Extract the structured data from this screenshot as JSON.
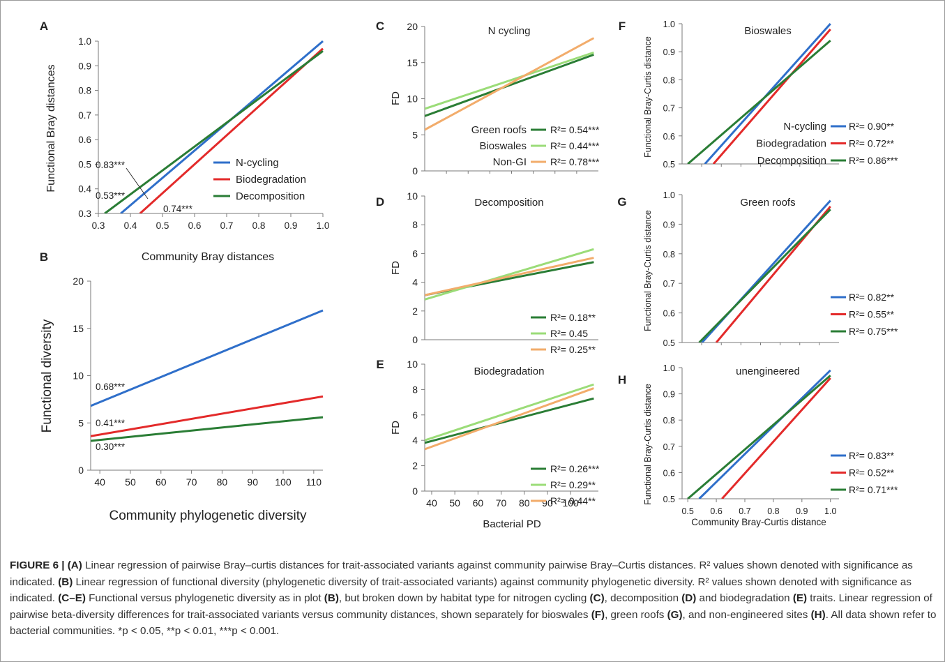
{
  "figure": {
    "caption": [
      {
        "bold": "FIGURE 6 | (A)",
        "text": " Linear regression of pairwise Bray–curtis distances for trait-associated variants against community pairwise Bray–Curtis distances. R² values shown denoted with significance as indicated. "
      },
      {
        "bold": "(B)",
        "text": " Linear regression of functional diversity (phylogenetic diversity of trait-associated variants) against community phylogenetic diversity. R² values shown denoted with significance as indicated. "
      },
      {
        "bold": "(C–E)",
        "text": " Functional versus phylogenetic diversity as in plot "
      },
      {
        "bold": "(B)",
        "text": ", but broken down by habitat type for nitrogen cycling "
      },
      {
        "bold": "(C)",
        "text": ", decomposition "
      },
      {
        "bold": "(D)",
        "text": " and biodegradation "
      },
      {
        "bold": "(E)",
        "text": " traits. Linear regression of pairwise beta-diversity differences for trait-associated variants versus community distances, shown separately for bioswales "
      },
      {
        "bold": "(F)",
        "text": ", green roofs "
      },
      {
        "bold": "(G)",
        "text": ", and non-engineered sites "
      },
      {
        "bold": "(H)",
        "text": ". All data shown refer to bacterial communities. *p < 0.05, **p < 0.01, ***p < 0.001."
      }
    ]
  },
  "colors": {
    "blue": "#2f6fca",
    "red": "#e32a2a",
    "green": "#2a7d35",
    "lightgreen": "#9bdc78",
    "orange": "#f2ac6b",
    "axis": "#7a7a7a",
    "text": "#222222"
  },
  "chart_data": [
    {
      "id": "A",
      "type": "line",
      "panel_label": "A",
      "title": "",
      "xlabel": "Community Bray distances",
      "ylabel": "Functional Bray distances",
      "xlim": [
        0.3,
        1.0
      ],
      "ylim": [
        0.3,
        1.0
      ],
      "xticks": [
        "0.3",
        "0.4",
        "0.5",
        "0.6",
        "0.7",
        "0.8",
        "0.9",
        "1.0"
      ],
      "yticks": [
        "0.3",
        "0.4",
        "0.5",
        "0.6",
        "0.7",
        "0.8",
        "0.9",
        "1.0"
      ],
      "legend_position": "center-right",
      "series": [
        {
          "name": "N-cycling",
          "color": "blue",
          "x": [
            0.37,
            1.0
          ],
          "y": [
            0.3,
            1.0
          ],
          "r2_label": "0.53***"
        },
        {
          "name": "Biodegradation",
          "color": "red",
          "x": [
            0.43,
            1.0
          ],
          "y": [
            0.3,
            0.97
          ],
          "r2_label": "0.74***"
        },
        {
          "name": "Decomposition",
          "color": "green",
          "x": [
            0.32,
            1.0
          ],
          "y": [
            0.3,
            0.96
          ],
          "r2_label": "0.83***"
        }
      ]
    },
    {
      "id": "B",
      "type": "line",
      "panel_label": "B",
      "title": "",
      "xlabel": "Community phylogenetic diversity",
      "ylabel": "Functional diversity",
      "xlim": [
        37,
        113
      ],
      "ylim": [
        0,
        20
      ],
      "xticks": [
        "40",
        "50",
        "60",
        "70",
        "80",
        "90",
        "100",
        "110"
      ],
      "yticks": [
        "0",
        "5",
        "10",
        "15",
        "20"
      ],
      "series": [
        {
          "color": "blue",
          "x": [
            37,
            113
          ],
          "y": [
            6.8,
            16.9
          ],
          "r2_label": "0.68***"
        },
        {
          "color": "red",
          "x": [
            37,
            113
          ],
          "y": [
            3.6,
            7.8
          ],
          "r2_label": "0.41***"
        },
        {
          "color": "green",
          "x": [
            37,
            113
          ],
          "y": [
            3.1,
            5.6
          ],
          "r2_label": "0.30***"
        }
      ]
    },
    {
      "id": "C",
      "type": "line",
      "panel_label": "C",
      "title": "N cycling",
      "xlabel": "",
      "ylabel": "FD",
      "xlim": [
        37,
        112
      ],
      "ylim": [
        0,
        20
      ],
      "yticks": [
        "0",
        "5",
        "10",
        "15",
        "20"
      ],
      "legend_position": "bottom-right",
      "series": [
        {
          "name": "Green roofs",
          "color": "green",
          "x": [
            37,
            110
          ],
          "y": [
            7.6,
            16.1
          ],
          "r2_label": "R²= 0.54***"
        },
        {
          "name": "Bioswales",
          "color": "lightgreen",
          "x": [
            37,
            110
          ],
          "y": [
            8.6,
            16.4
          ],
          "r2_label": "R²= 0.44***"
        },
        {
          "name": "Non-GI",
          "color": "orange",
          "x": [
            37,
            110
          ],
          "y": [
            5.7,
            18.4
          ],
          "r2_label": "R²= 0.78***"
        }
      ]
    },
    {
      "id": "D",
      "type": "line",
      "panel_label": "D",
      "title": "Decomposition",
      "xlabel": "",
      "ylabel": "FD",
      "xlim": [
        37,
        112
      ],
      "ylim": [
        0,
        10
      ],
      "yticks": [
        "0",
        "2",
        "4",
        "6",
        "8",
        "10"
      ],
      "legend_position": "bottom-right",
      "series": [
        {
          "color": "green",
          "x": [
            37,
            110
          ],
          "y": [
            3.1,
            5.4
          ],
          "r2_label": "R²= 0.18**"
        },
        {
          "color": "lightgreen",
          "x": [
            37,
            110
          ],
          "y": [
            2.8,
            6.3
          ],
          "r2_label": "R²= 0.45"
        },
        {
          "color": "orange",
          "x": [
            37,
            110
          ],
          "y": [
            3.1,
            5.7
          ],
          "r2_label": "R²= 0.25**"
        }
      ]
    },
    {
      "id": "E",
      "type": "line",
      "panel_label": "E",
      "title": "Biodegradation",
      "xlabel": "Bacterial PD",
      "ylabel": "FD",
      "xlim": [
        37,
        112
      ],
      "ylim": [
        0,
        10
      ],
      "xticks": [
        "40",
        "50",
        "60",
        "70",
        "80",
        "90",
        "100"
      ],
      "yticks": [
        "0",
        "2",
        "4",
        "6",
        "8",
        "10"
      ],
      "legend_position": "bottom-right",
      "series": [
        {
          "color": "green",
          "x": [
            37,
            110
          ],
          "y": [
            3.8,
            7.3
          ],
          "r2_label": "R²= 0.26***"
        },
        {
          "color": "lightgreen",
          "x": [
            37,
            110
          ],
          "y": [
            4.0,
            8.4
          ],
          "r2_label": "R²= 0.29**"
        },
        {
          "color": "orange",
          "x": [
            37,
            110
          ],
          "y": [
            3.3,
            8.1
          ],
          "r2_label": "R²= 0.44**"
        }
      ]
    },
    {
      "id": "F",
      "type": "line",
      "panel_label": "F",
      "title": "Bioswales",
      "xlabel": "",
      "ylabel": "Functional Bray-Curtis distance",
      "xlim": [
        0.48,
        1.03
      ],
      "ylim": [
        0.5,
        1.0
      ],
      "yticks": [
        "0.5",
        "0.6",
        "0.7",
        "0.8",
        "0.9",
        "1.0"
      ],
      "legend_position": "center-right",
      "series": [
        {
          "name": "N-cycling",
          "color": "blue",
          "x": [
            0.56,
            1.0
          ],
          "y": [
            0.5,
            1.0
          ],
          "r2_label": "R²= 0.90**"
        },
        {
          "name": "Biodegradation",
          "color": "red",
          "x": [
            0.59,
            1.0
          ],
          "y": [
            0.5,
            0.98
          ],
          "r2_label": "R²= 0.72**"
        },
        {
          "name": "Decomposition",
          "color": "green",
          "x": [
            0.5,
            1.0
          ],
          "y": [
            0.5,
            0.94
          ],
          "r2_label": "R²= 0.86***"
        }
      ]
    },
    {
      "id": "G",
      "type": "line",
      "panel_label": "G",
      "title": "Green roofs",
      "xlabel": "",
      "ylabel": "Functional Bray-Curtis distance",
      "xlim": [
        0.48,
        1.03
      ],
      "ylim": [
        0.5,
        1.0
      ],
      "yticks": [
        "0.5",
        "0.6",
        "0.7",
        "0.8",
        "0.9",
        "1.0"
      ],
      "legend_position": "bottom-right",
      "series": [
        {
          "color": "blue",
          "x": [
            0.55,
            1.0
          ],
          "y": [
            0.5,
            0.98
          ],
          "r2_label": "R²= 0.82**"
        },
        {
          "color": "red",
          "x": [
            0.6,
            1.0
          ],
          "y": [
            0.5,
            0.96
          ],
          "r2_label": "R²= 0.55**"
        },
        {
          "color": "green",
          "x": [
            0.54,
            1.0
          ],
          "y": [
            0.5,
            0.95
          ],
          "r2_label": "R²= 0.75***"
        }
      ]
    },
    {
      "id": "H",
      "type": "line",
      "panel_label": "H",
      "title": "unengineered",
      "xlabel": "Community Bray-Curtis distance",
      "ylabel": "Functional Bray-Curtis distance",
      "xlim": [
        0.48,
        1.03
      ],
      "ylim": [
        0.5,
        1.0
      ],
      "xticks": [
        "0.5",
        "0.6",
        "0.7",
        "0.8",
        "0.9",
        "1.0"
      ],
      "yticks": [
        "0.5",
        "0.6",
        "0.7",
        "0.8",
        "0.9",
        "1.0"
      ],
      "legend_position": "bottom-right",
      "series": [
        {
          "color": "blue",
          "x": [
            0.54,
            1.0
          ],
          "y": [
            0.5,
            0.99
          ],
          "r2_label": "R²= 0.83**"
        },
        {
          "color": "red",
          "x": [
            0.62,
            1.0
          ],
          "y": [
            0.5,
            0.96
          ],
          "r2_label": "R²= 0.52**"
        },
        {
          "color": "green",
          "x": [
            0.5,
            1.0
          ],
          "y": [
            0.5,
            0.97
          ],
          "r2_label": "R²= 0.71***"
        }
      ]
    }
  ]
}
